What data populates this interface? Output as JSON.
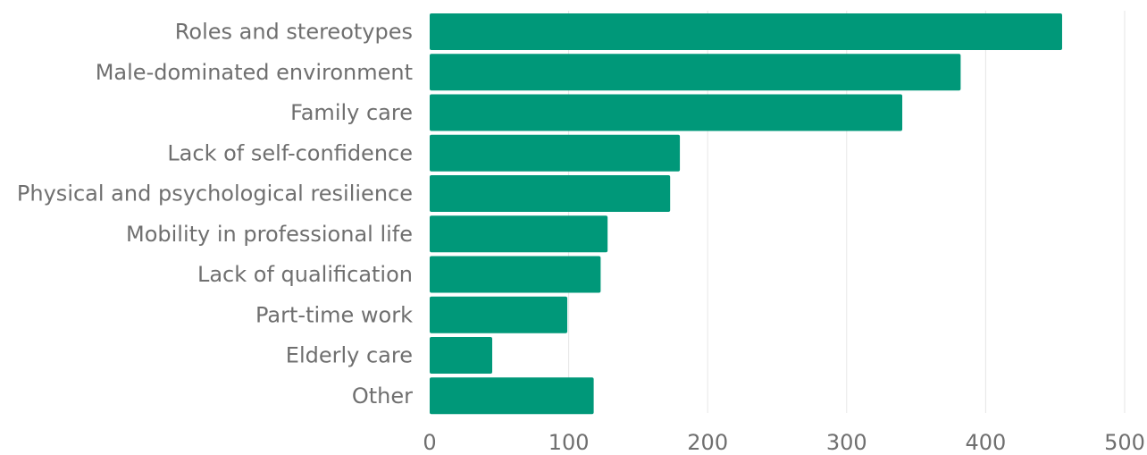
{
  "chart_data": {
    "type": "bar",
    "orientation": "horizontal",
    "title": "",
    "xlabel": "",
    "ylabel": "",
    "categories": [
      "Roles and stereotypes",
      "Male-dominated environment",
      "Family care",
      "Lack of self-confidence",
      "Physical and psychological resilience",
      "Mobility in professional life",
      "Lack of qualification",
      "Part-time work",
      "Elderly care",
      "Other"
    ],
    "values": [
      455,
      382,
      340,
      180,
      173,
      128,
      123,
      99,
      45,
      118
    ],
    "xlim": [
      0,
      500
    ],
    "xticks": [
      "0",
      "100",
      "200",
      "300",
      "400",
      "500"
    ],
    "grid": "vertical",
    "bar_color": "#009879"
  }
}
